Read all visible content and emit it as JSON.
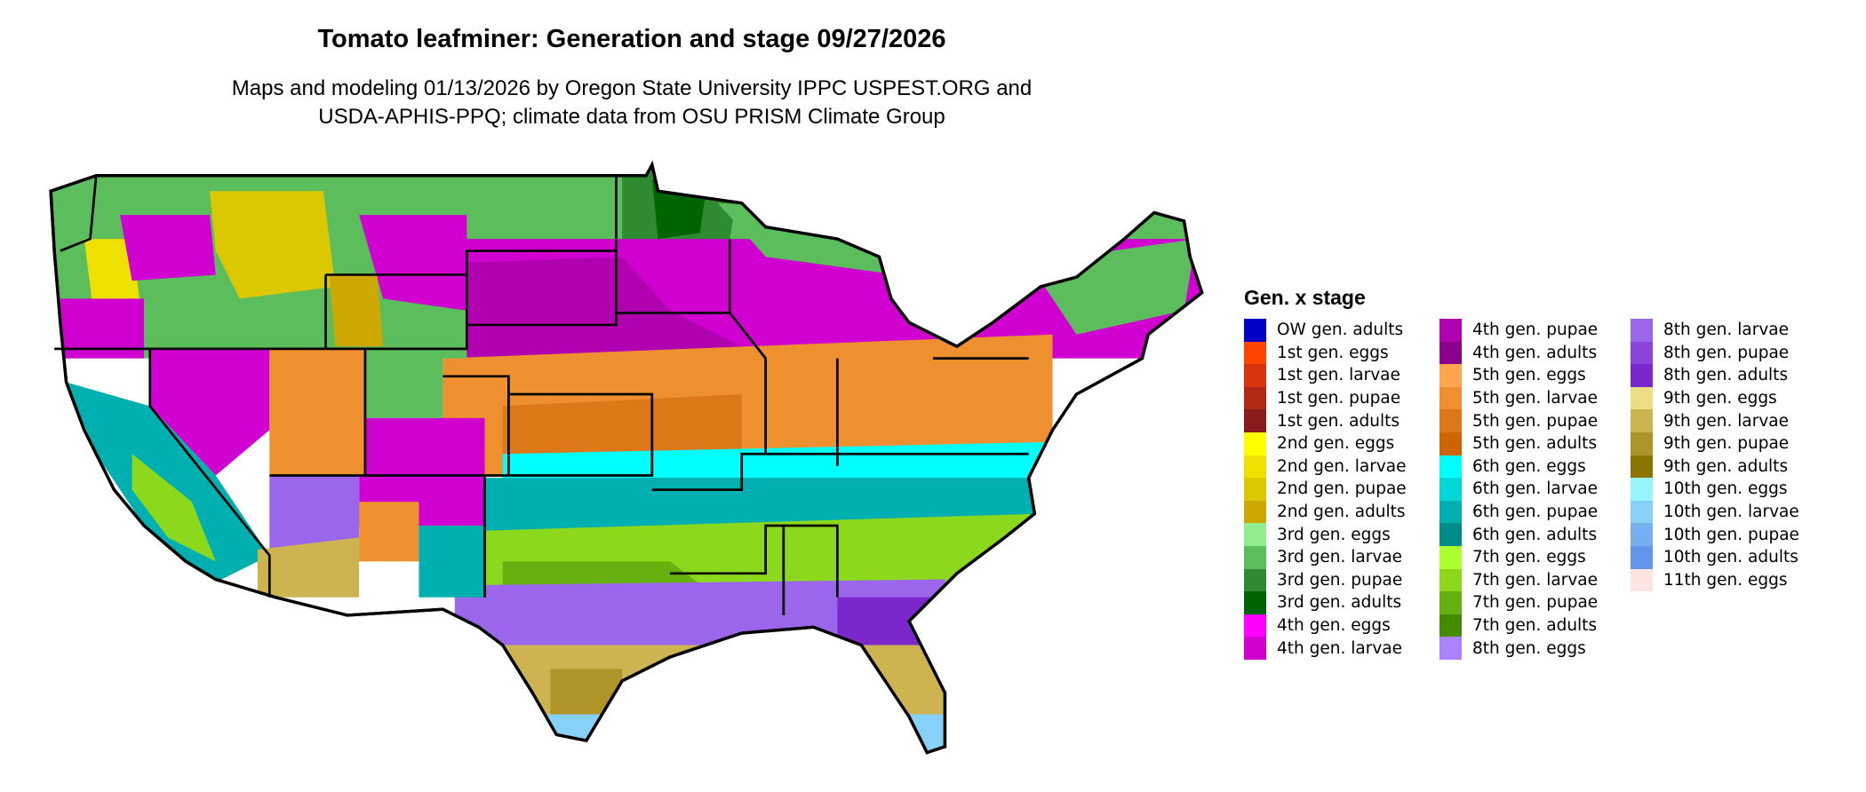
{
  "title": "Tomato leafminer: Generation and stage 09/27/2026",
  "subtitle_line1": "Maps and modeling 01/13/2026 by Oregon State University IPPC USPEST.ORG and",
  "subtitle_line2": "USDA-APHIS-PPQ; climate data from OSU PRISM Climate Group",
  "legend": {
    "title": "Gen. x stage",
    "columns": [
      [
        {
          "label": "OW gen. adults",
          "color": "#0000c8"
        },
        {
          "label": "1st gen. eggs",
          "color": "#ff4500"
        },
        {
          "label": "1st gen. larvae",
          "color": "#d9340e"
        },
        {
          "label": "1st gen. pupae",
          "color": "#b22a14"
        },
        {
          "label": "1st gen. adults",
          "color": "#8b1a1a"
        },
        {
          "label": "2nd gen. eggs",
          "color": "#ffff00"
        },
        {
          "label": "2nd gen. larvae",
          "color": "#eee000"
        },
        {
          "label": "2nd gen. pupae",
          "color": "#dcc800"
        },
        {
          "label": "2nd gen. adults",
          "color": "#cca800"
        },
        {
          "label": "3rd gen. eggs",
          "color": "#90ee90"
        },
        {
          "label": "3rd gen. larvae",
          "color": "#5cbd5c"
        },
        {
          "label": "3rd gen. pupae",
          "color": "#2e8b32"
        },
        {
          "label": "3rd gen. adults",
          "color": "#006400"
        },
        {
          "label": "4th gen. eggs",
          "color": "#ff00ff"
        },
        {
          "label": "4th gen. larvae",
          "color": "#d000d0"
        }
      ],
      [
        {
          "label": "4th gen. pupae",
          "color": "#b000b0"
        },
        {
          "label": "4th gen. adults",
          "color": "#8b008b"
        },
        {
          "label": "5th gen. eggs",
          "color": "#ffa54f"
        },
        {
          "label": "5th gen. larvae",
          "color": "#ee9030"
        },
        {
          "label": "5th gen. pupae",
          "color": "#dc7818"
        },
        {
          "label": "5th gen. adults",
          "color": "#cd6600"
        },
        {
          "label": "6th gen. eggs",
          "color": "#00ffff"
        },
        {
          "label": "6th gen. larvae",
          "color": "#00d8d8"
        },
        {
          "label": "6th gen. pupae",
          "color": "#00b0b0"
        },
        {
          "label": "6th gen. adults",
          "color": "#008b8b"
        },
        {
          "label": "7th gen. eggs",
          "color": "#adff2f"
        },
        {
          "label": "7th gen. larvae",
          "color": "#8cd81c"
        },
        {
          "label": "7th gen. pupae",
          "color": "#66b010"
        },
        {
          "label": "7th gen. adults",
          "color": "#458b00"
        },
        {
          "label": "8th gen. eggs",
          "color": "#ab82ff"
        }
      ],
      [
        {
          "label": "8th gen. larvae",
          "color": "#9b65ec"
        },
        {
          "label": "8th gen. pupae",
          "color": "#8a44dc"
        },
        {
          "label": "8th gen. adults",
          "color": "#7a28cc"
        },
        {
          "label": "9th gen. eggs",
          "color": "#eedc82"
        },
        {
          "label": "9th gen. larvae",
          "color": "#cdb450"
        },
        {
          "label": "9th gen. pupae",
          "color": "#ae9428"
        },
        {
          "label": "9th gen. adults",
          "color": "#8b7500"
        },
        {
          "label": "10th gen. eggs",
          "color": "#98f5ff"
        },
        {
          "label": "10th gen. larvae",
          "color": "#87d0f8"
        },
        {
          "label": "10th gen. pupae",
          "color": "#74b0f0"
        },
        {
          "label": "10th gen. adults",
          "color": "#6495ed"
        },
        {
          "label": "11th gen. eggs",
          "color": "#ffe4e1"
        }
      ]
    ]
  }
}
